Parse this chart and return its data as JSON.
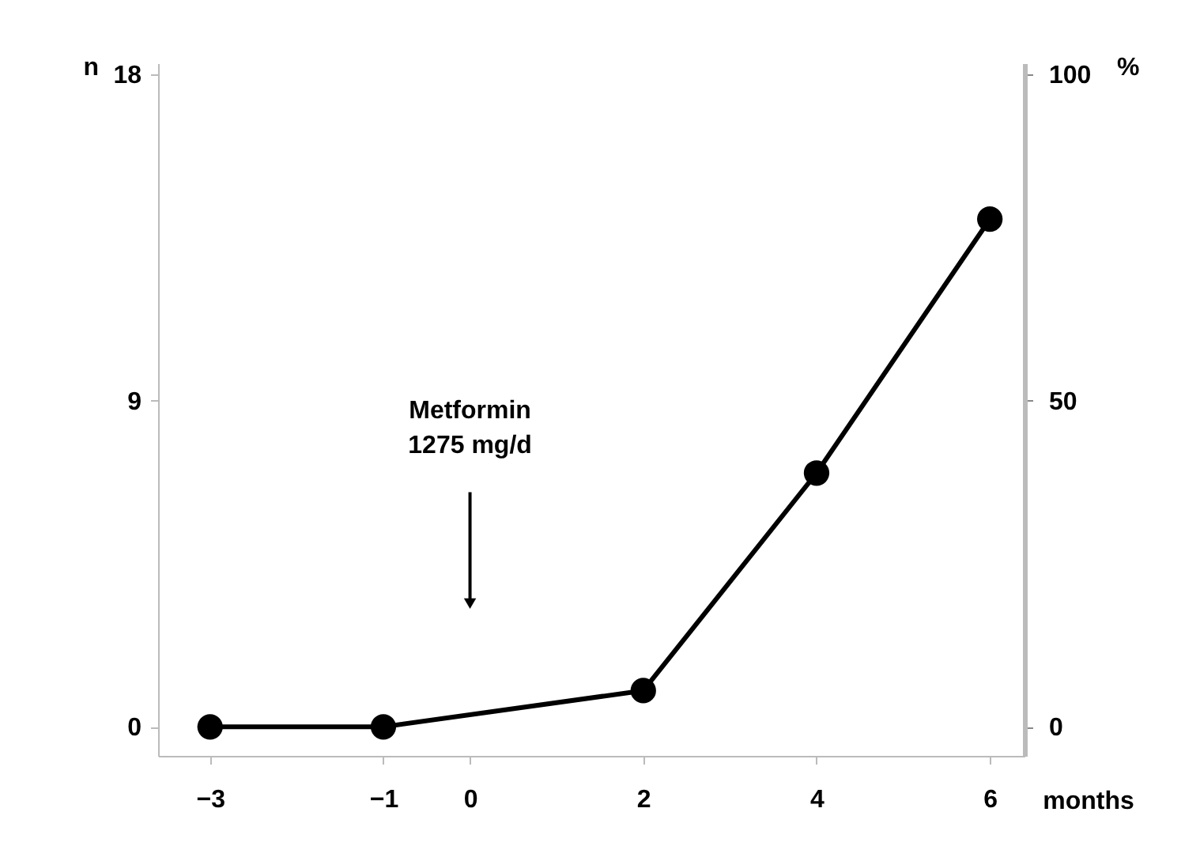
{
  "chart_data": {
    "type": "line",
    "x": [
      -3,
      -1,
      2,
      4,
      6
    ],
    "series": [
      {
        "color": "#000000",
        "values": [
          0,
          0,
          1,
          7,
          14
        ]
      }
    ],
    "xlim": [
      -3.6,
      6.4
    ],
    "xticks": [
      -3,
      -1,
      0,
      2,
      4,
      6
    ],
    "xlabel": "months",
    "ylim": [
      -0.8,
      18.3
    ],
    "yticks": [
      0,
      9,
      18
    ],
    "ylabel": "n",
    "y2lim": [
      -4.44,
      101.67
    ],
    "y2ticks": [
      0,
      50,
      100
    ],
    "y2label": "%",
    "annotations": [
      {
        "text": "Metformin\n1275 mg/d",
        "x": 0,
        "y": 3.4
      }
    ],
    "marker": "circle",
    "line_style": "solid"
  }
}
